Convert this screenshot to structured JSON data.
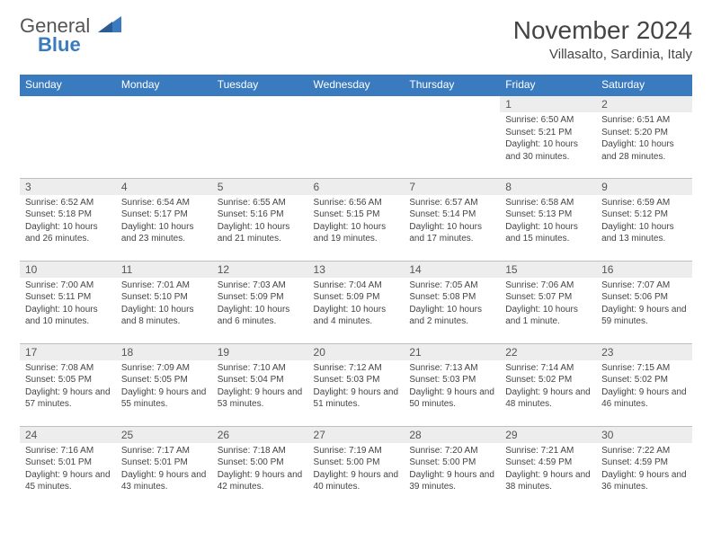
{
  "brand": {
    "gray": "General",
    "blue": "Blue"
  },
  "title": "November 2024",
  "location": "Villasalto, Sardinia, Italy",
  "colors": {
    "header_bg": "#3a7bbf",
    "header_text": "#ffffff",
    "daynum_bg": "#ededed",
    "border": "#bfbfbf",
    "text": "#444444"
  },
  "dayHeaders": [
    "Sunday",
    "Monday",
    "Tuesday",
    "Wednesday",
    "Thursday",
    "Friday",
    "Saturday"
  ],
  "weeks": [
    [
      {
        "empty": true
      },
      {
        "empty": true
      },
      {
        "empty": true
      },
      {
        "empty": true
      },
      {
        "empty": true
      },
      {
        "n": "1",
        "sr": "6:50 AM",
        "ss": "5:21 PM",
        "dl": "10 hours and 30 minutes."
      },
      {
        "n": "2",
        "sr": "6:51 AM",
        "ss": "5:20 PM",
        "dl": "10 hours and 28 minutes."
      }
    ],
    [
      {
        "n": "3",
        "sr": "6:52 AM",
        "ss": "5:18 PM",
        "dl": "10 hours and 26 minutes."
      },
      {
        "n": "4",
        "sr": "6:54 AM",
        "ss": "5:17 PM",
        "dl": "10 hours and 23 minutes."
      },
      {
        "n": "5",
        "sr": "6:55 AM",
        "ss": "5:16 PM",
        "dl": "10 hours and 21 minutes."
      },
      {
        "n": "6",
        "sr": "6:56 AM",
        "ss": "5:15 PM",
        "dl": "10 hours and 19 minutes."
      },
      {
        "n": "7",
        "sr": "6:57 AM",
        "ss": "5:14 PM",
        "dl": "10 hours and 17 minutes."
      },
      {
        "n": "8",
        "sr": "6:58 AM",
        "ss": "5:13 PM",
        "dl": "10 hours and 15 minutes."
      },
      {
        "n": "9",
        "sr": "6:59 AM",
        "ss": "5:12 PM",
        "dl": "10 hours and 13 minutes."
      }
    ],
    [
      {
        "n": "10",
        "sr": "7:00 AM",
        "ss": "5:11 PM",
        "dl": "10 hours and 10 minutes."
      },
      {
        "n": "11",
        "sr": "7:01 AM",
        "ss": "5:10 PM",
        "dl": "10 hours and 8 minutes."
      },
      {
        "n": "12",
        "sr": "7:03 AM",
        "ss": "5:09 PM",
        "dl": "10 hours and 6 minutes."
      },
      {
        "n": "13",
        "sr": "7:04 AM",
        "ss": "5:09 PM",
        "dl": "10 hours and 4 minutes."
      },
      {
        "n": "14",
        "sr": "7:05 AM",
        "ss": "5:08 PM",
        "dl": "10 hours and 2 minutes."
      },
      {
        "n": "15",
        "sr": "7:06 AM",
        "ss": "5:07 PM",
        "dl": "10 hours and 1 minute."
      },
      {
        "n": "16",
        "sr": "7:07 AM",
        "ss": "5:06 PM",
        "dl": "9 hours and 59 minutes."
      }
    ],
    [
      {
        "n": "17",
        "sr": "7:08 AM",
        "ss": "5:05 PM",
        "dl": "9 hours and 57 minutes."
      },
      {
        "n": "18",
        "sr": "7:09 AM",
        "ss": "5:05 PM",
        "dl": "9 hours and 55 minutes."
      },
      {
        "n": "19",
        "sr": "7:10 AM",
        "ss": "5:04 PM",
        "dl": "9 hours and 53 minutes."
      },
      {
        "n": "20",
        "sr": "7:12 AM",
        "ss": "5:03 PM",
        "dl": "9 hours and 51 minutes."
      },
      {
        "n": "21",
        "sr": "7:13 AM",
        "ss": "5:03 PM",
        "dl": "9 hours and 50 minutes."
      },
      {
        "n": "22",
        "sr": "7:14 AM",
        "ss": "5:02 PM",
        "dl": "9 hours and 48 minutes."
      },
      {
        "n": "23",
        "sr": "7:15 AM",
        "ss": "5:02 PM",
        "dl": "9 hours and 46 minutes."
      }
    ],
    [
      {
        "n": "24",
        "sr": "7:16 AM",
        "ss": "5:01 PM",
        "dl": "9 hours and 45 minutes."
      },
      {
        "n": "25",
        "sr": "7:17 AM",
        "ss": "5:01 PM",
        "dl": "9 hours and 43 minutes."
      },
      {
        "n": "26",
        "sr": "7:18 AM",
        "ss": "5:00 PM",
        "dl": "9 hours and 42 minutes."
      },
      {
        "n": "27",
        "sr": "7:19 AM",
        "ss": "5:00 PM",
        "dl": "9 hours and 40 minutes."
      },
      {
        "n": "28",
        "sr": "7:20 AM",
        "ss": "5:00 PM",
        "dl": "9 hours and 39 minutes."
      },
      {
        "n": "29",
        "sr": "7:21 AM",
        "ss": "4:59 PM",
        "dl": "9 hours and 38 minutes."
      },
      {
        "n": "30",
        "sr": "7:22 AM",
        "ss": "4:59 PM",
        "dl": "9 hours and 36 minutes."
      }
    ]
  ]
}
